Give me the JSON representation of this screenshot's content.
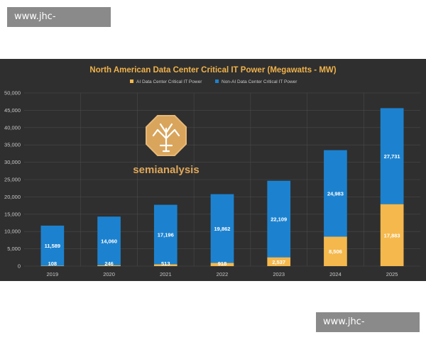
{
  "watermark": {
    "top_text": "www.jhc-hitachi.com",
    "bottom_text": "www.jhc-hitachi.com"
  },
  "logo": {
    "text": "semianalysis"
  },
  "colors": {
    "background": "#2f2f2f",
    "ai_series": "#f5b84d",
    "non_ai_series": "#1c82cf",
    "title": "#f0b24a",
    "tick_text": "#c8c8c8",
    "grid": "#4a4a4a"
  },
  "chart_data": {
    "type": "bar",
    "stacked": true,
    "title": "North American Data Center Critical IT Power (Megawatts - MW)",
    "xlabel": "",
    "ylabel": "",
    "ylim": [
      0,
      50000
    ],
    "yticks": [
      0,
      5000,
      10000,
      15000,
      20000,
      25000,
      30000,
      35000,
      40000,
      45000,
      50000
    ],
    "ytick_labels": [
      "0",
      "5,000",
      "10,000",
      "15,000",
      "20,000",
      "25,000",
      "30,000",
      "35,000",
      "40,000",
      "45,000",
      "50,000"
    ],
    "categories": [
      "2019",
      "2020",
      "2021",
      "2022",
      "2023",
      "2024",
      "2025"
    ],
    "legend_position": "top-center",
    "grid": true,
    "series": [
      {
        "name": "AI Data Center Critical IT Power",
        "values": [
          108,
          246,
          513,
          918,
          2537,
          8506,
          17883
        ],
        "labels": [
          "108",
          "246",
          "513",
          "918",
          "2,537",
          "8,506",
          "17,883"
        ]
      },
      {
        "name": "Non-AI Data Center Critical IT Power",
        "values": [
          11589,
          14060,
          17196,
          19862,
          22109,
          24983,
          27731
        ],
        "labels": [
          "11,589",
          "14,060",
          "17,196",
          "19,862",
          "22,109",
          "24,983",
          "27,731"
        ]
      }
    ]
  }
}
